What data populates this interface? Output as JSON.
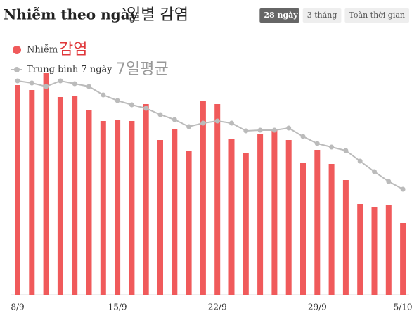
{
  "chart_data": {
    "type": "bar",
    "title": "Nhiễm theo ngày",
    "title_annotation": "일별 감염",
    "buttons": [
      "28 ngày",
      "3 tháng",
      "Toàn thời gian"
    ],
    "active_button": 0,
    "annotations": [
      "감염",
      "7일평균"
    ],
    "categories": [
      "8/9",
      null,
      null,
      null,
      null,
      null,
      null,
      "15/9",
      null,
      null,
      null,
      null,
      null,
      null,
      "22/9",
      null,
      null,
      null,
      null,
      null,
      null,
      "29/9",
      null,
      null,
      null,
      null,
      null,
      "5/10"
    ],
    "series": [
      {
        "name": "Nhiễm",
        "type": "bar",
        "color": "#f05a5b",
        "values": [
          298,
          291,
          315,
          281,
          283,
          263,
          247,
          249,
          247,
          271,
          220,
          235,
          204,
          275,
          271,
          222,
          201,
          228,
          235,
          220,
          188,
          206,
          186,
          163,
          129,
          125,
          127,
          102
        ]
      },
      {
        "name": "Trung bình 7 ngày",
        "type": "line",
        "color": "#bbbbbb",
        "values": [
          304,
          301,
          296,
          304,
          300,
          296,
          284,
          276,
          270,
          265,
          256,
          249,
          239,
          244,
          247,
          244,
          233,
          234,
          234,
          237,
          225,
          215,
          210,
          205,
          190,
          175,
          161,
          150
        ]
      }
    ],
    "ylim": [
      0,
      330
    ]
  }
}
